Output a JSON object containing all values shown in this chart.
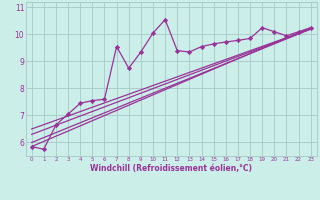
{
  "xlabel": "Windchill (Refroidissement éolien,°C)",
  "bg_color": "#cceee8",
  "grid_color": "#aacccc",
  "line_color": "#993399",
  "xlim": [
    -0.5,
    23.5
  ],
  "ylim": [
    5.5,
    11.2
  ],
  "xticks": [
    0,
    1,
    2,
    3,
    4,
    5,
    6,
    7,
    8,
    9,
    10,
    11,
    12,
    13,
    14,
    15,
    16,
    17,
    18,
    19,
    20,
    21,
    22,
    23
  ],
  "yticks": [
    6,
    7,
    8,
    9,
    10,
    11
  ],
  "series_jagged1": {
    "x": [
      0,
      1,
      2,
      3,
      4,
      5,
      6,
      7,
      8,
      9,
      10,
      11,
      12,
      13,
      14,
      15,
      16,
      17,
      18,
      19,
      20,
      21,
      22,
      23
    ],
    "y": [
      5.85,
      5.75,
      6.65,
      7.05,
      7.45,
      7.55,
      7.6,
      9.55,
      8.75,
      9.35,
      10.05,
      10.55,
      9.4,
      9.35,
      9.55,
      9.65,
      9.72,
      9.78,
      9.85,
      10.25,
      10.1,
      9.95,
      10.1,
      10.25
    ]
  },
  "series_jagged2": {
    "x": [
      1,
      2,
      3,
      4,
      5,
      6,
      7,
      8,
      9,
      10,
      11,
      12,
      13,
      14,
      15,
      16,
      17,
      18,
      19,
      20,
      21,
      22,
      23
    ],
    "y": [
      5.75,
      6.65,
      7.05,
      7.45,
      7.55,
      7.6,
      9.55,
      8.75,
      9.35,
      10.05,
      10.55,
      9.4,
      9.35,
      9.55,
      9.65,
      9.72,
      9.78,
      9.85,
      10.25,
      10.1,
      9.95,
      10.1,
      10.25
    ]
  },
  "trend_lines": [
    {
      "x": [
        0,
        23
      ],
      "y": [
        5.85,
        10.25
      ]
    },
    {
      "x": [
        0,
        23
      ],
      "y": [
        6.0,
        10.2
      ]
    },
    {
      "x": [
        0,
        23
      ],
      "y": [
        6.3,
        10.2
      ]
    },
    {
      "x": [
        0,
        23
      ],
      "y": [
        6.5,
        10.2
      ]
    }
  ]
}
